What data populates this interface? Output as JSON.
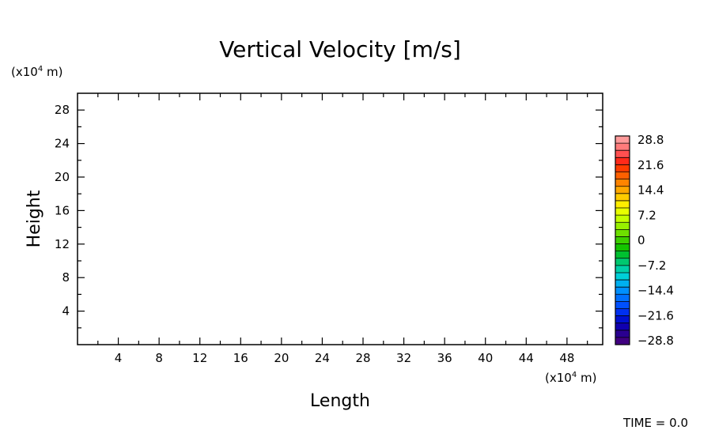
{
  "chart_data": {
    "type": "heatmap",
    "title": "Vertical Velocity [m/s]",
    "xlabel": "Length",
    "ylabel": "Height",
    "x_unit": "(x10^4 m)",
    "y_unit": "(x10^4 m)",
    "unit_prefix": "(x10",
    "unit_exponent": "4",
    "unit_suffix": " m)",
    "xlim": [
      0,
      51.5
    ],
    "ylim": [
      0,
      30
    ],
    "x_ticks": [
      4,
      8,
      12,
      16,
      20,
      24,
      28,
      32,
      36,
      40,
      44,
      48
    ],
    "y_ticks": [
      4,
      8,
      12,
      16,
      20,
      24,
      28
    ],
    "grid": false,
    "values": [],
    "colorbar": {
      "min": -28.8,
      "max": 28.8,
      "labels": [
        "28.8",
        "21.6",
        "14.4",
        "7.2",
        "0",
        "−7.2",
        "−14.4",
        "−21.6",
        "−28.8"
      ],
      "colors": [
        "#ff9a9a",
        "#ff7b7b",
        "#ff5050",
        "#ff2a1a",
        "#ff3c00",
        "#ff6000",
        "#ff8400",
        "#ffa800",
        "#ffcc00",
        "#ffee00",
        "#e8ff00",
        "#c4ff00",
        "#98f000",
        "#6ee000",
        "#3cd000",
        "#14c400",
        "#00c030",
        "#00c870",
        "#00d0a8",
        "#00d0d8",
        "#00b0f0",
        "#0090ff",
        "#0070ff",
        "#0050ff",
        "#0030f0",
        "#0010d0",
        "#1000b0",
        "#2a0090",
        "#400080"
      ]
    },
    "footer": "TIME = 0.0"
  }
}
